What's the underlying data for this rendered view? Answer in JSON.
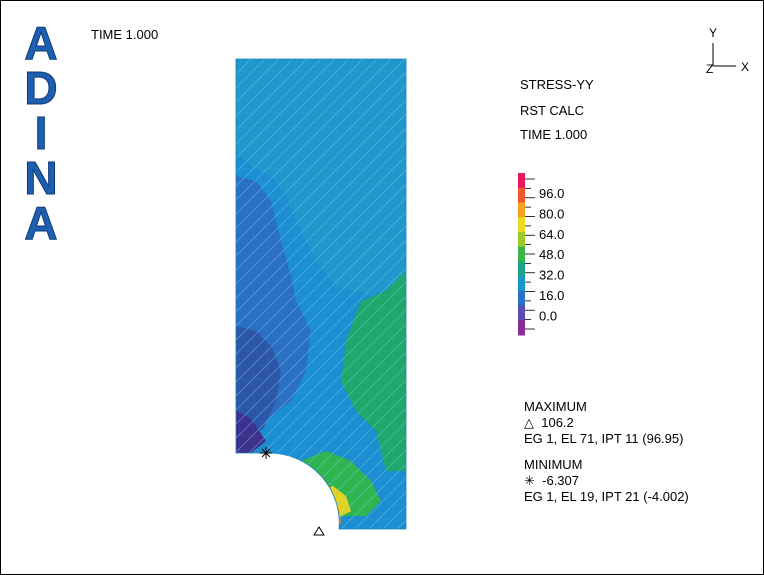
{
  "logo": {
    "letters": [
      "A",
      "D",
      "I",
      "N",
      "A"
    ],
    "text": "ADINA",
    "color": "#1f5fb0"
  },
  "header": {
    "time_label": "TIME 1.000"
  },
  "axes": {
    "y": "Y",
    "z": "Z",
    "x": "X"
  },
  "result": {
    "variable": "STRESS-YY",
    "method": "RST CALC",
    "time": "TIME 1.000"
  },
  "colorbar": {
    "ticks": [
      "96.0",
      "80.0",
      "64.0",
      "48.0",
      "32.0",
      "16.0",
      "0.0"
    ],
    "colors": [
      "#e8195a",
      "#f0572a",
      "#f5a01e",
      "#e9dc1e",
      "#9ccb2c",
      "#3cb44a",
      "#1ea28c",
      "#1a97c8",
      "#2a72c8",
      "#5a4bb5",
      "#8c2c96"
    ]
  },
  "extremes": {
    "maximum_label": "MAXIMUM",
    "maximum_symbol": "△",
    "maximum_value": "106.2",
    "maximum_location": "EG 1, EL 71, IPT 11 (96.95)",
    "minimum_label": "MINIMUM",
    "minimum_symbol": "✳",
    "minimum_value": "-6.307",
    "minimum_location": "EG 1, EL 19, IPT 21 (-4.002)"
  },
  "field_colors": {
    "base": "#1e98cc",
    "mid": "#1a8ed0",
    "low": "#2a6fc2",
    "lower": "#2c54a8",
    "lowest": "#3d2f8c",
    "green": "#1fa86c",
    "green2": "#2fb550",
    "yellow": "#e6d41c",
    "orange": "#f29a1a",
    "red": "#e53a2a",
    "pink": "#e51a6e"
  }
}
